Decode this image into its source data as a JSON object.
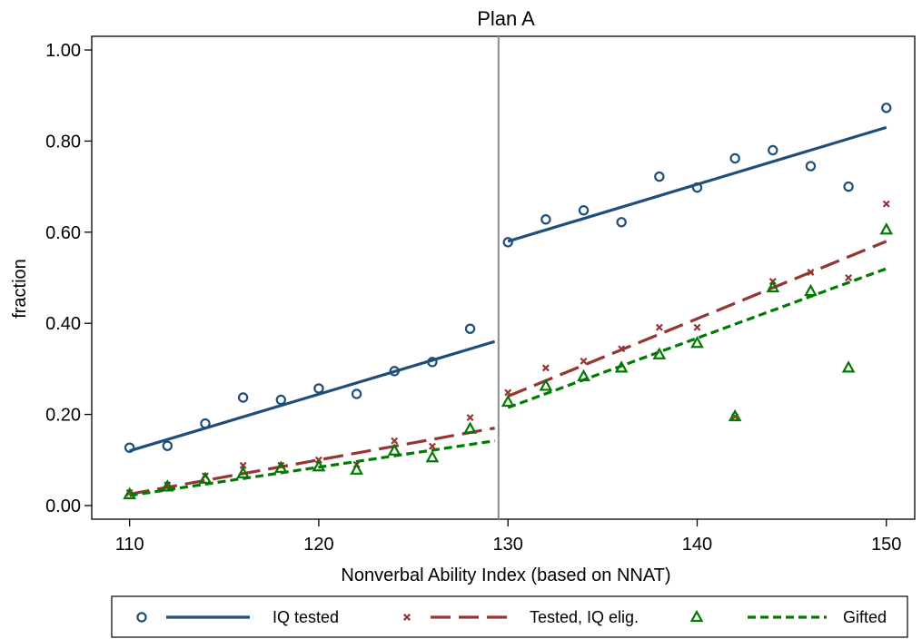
{
  "chart_data": {
    "type": "scatter",
    "title": "Plan A",
    "xlabel": "Nonverbal Ability Index (based on NNAT)",
    "ylabel": "fraction",
    "xlim": [
      108,
      151.5
    ],
    "ylim": [
      -0.03,
      1.03
    ],
    "x_ticks": [
      110,
      120,
      130,
      140,
      150
    ],
    "x_tick_labels": [
      "110",
      "120",
      "130",
      "140",
      "150"
    ],
    "y_ticks": [
      0,
      0.2,
      0.4,
      0.6,
      0.8,
      1.0
    ],
    "y_tick_labels": [
      "0.00",
      "0.20",
      "0.40",
      "0.60",
      "0.80",
      "1.00"
    ],
    "grid": false,
    "cutoff_x": 129.5,
    "legend_position": "bottom",
    "legend_items": [
      "IQ tested",
      "Tested, IQ elig.",
      "Gifted"
    ],
    "series": [
      {
        "name": "IQ tested",
        "color": "#1F4E79",
        "marker": "circle",
        "line_style": "solid",
        "x": [
          110,
          112,
          114,
          116,
          118,
          120,
          122,
          124,
          126,
          128,
          130,
          132,
          134,
          136,
          138,
          140,
          142,
          144,
          146,
          148,
          150
        ],
        "y": [
          0.127,
          0.131,
          0.18,
          0.237,
          0.232,
          0.257,
          0.245,
          0.295,
          0.315,
          0.388,
          0.578,
          0.628,
          0.648,
          0.622,
          0.722,
          0.698,
          0.762,
          0.78,
          0.745,
          0.7,
          0.873
        ],
        "fit": [
          {
            "x": [
              110,
              129.3
            ],
            "y": [
              0.12,
              0.36
            ]
          },
          {
            "x": [
              130,
              150
            ],
            "y": [
              0.58,
              0.83
            ]
          }
        ]
      },
      {
        "name": "Tested, IQ elig.",
        "color": "#943634",
        "marker": "x",
        "line_style": "longdash",
        "x": [
          110,
          112,
          114,
          116,
          118,
          120,
          122,
          124,
          126,
          128,
          130,
          132,
          134,
          136,
          138,
          140,
          142,
          144,
          146,
          148,
          150
        ],
        "y": [
          0.028,
          0.045,
          0.065,
          0.088,
          0.088,
          0.1,
          0.09,
          0.142,
          0.13,
          0.193,
          0.248,
          0.302,
          0.317,
          0.344,
          0.391,
          0.391,
          0.195,
          0.492,
          0.512,
          0.5,
          0.662
        ],
        "fit": [
          {
            "x": [
              110,
              129.3
            ],
            "y": [
              0.025,
              0.17
            ]
          },
          {
            "x": [
              130,
              150
            ],
            "y": [
              0.24,
              0.58
            ]
          }
        ]
      },
      {
        "name": "Gifted",
        "color": "#007A00",
        "marker": "triangle",
        "line_style": "shortdash",
        "x": [
          110,
          112,
          114,
          116,
          118,
          120,
          122,
          124,
          126,
          128,
          130,
          132,
          134,
          136,
          138,
          140,
          142,
          144,
          146,
          148,
          150
        ],
        "y": [
          0.024,
          0.041,
          0.058,
          0.07,
          0.082,
          0.085,
          0.078,
          0.12,
          0.105,
          0.168,
          0.227,
          0.262,
          0.283,
          0.302,
          0.331,
          0.356,
          0.195,
          0.478,
          0.47,
          0.302,
          0.605
        ],
        "fit": [
          {
            "x": [
              110,
              129.3
            ],
            "y": [
              0.022,
              0.142
            ]
          },
          {
            "x": [
              130,
              150
            ],
            "y": [
              0.215,
              0.52
            ]
          }
        ]
      }
    ]
  }
}
